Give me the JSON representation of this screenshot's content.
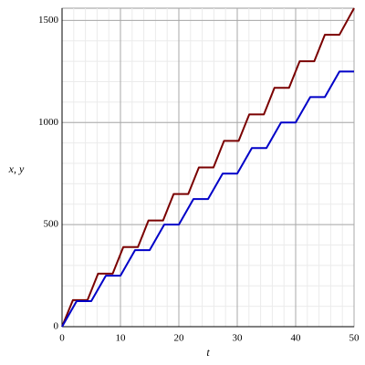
{
  "chart_data": {
    "type": "line",
    "x_label": "t",
    "y_label": "x, y",
    "xlim": [
      0,
      50
    ],
    "ylim": [
      0,
      1560
    ],
    "xticks": [
      0,
      10,
      20,
      30,
      40,
      50
    ],
    "yticks": [
      0,
      500,
      1000,
      1500
    ],
    "grid": true,
    "minor_grid": true,
    "series": [
      {
        "color": "#7a0000",
        "x": [
          0,
          1.86,
          4.36,
          6.17,
          8.67,
          10.49,
          12.99,
          14.8,
          17.3,
          19.11,
          21.61,
          23.43,
          25.93,
          27.74,
          30.24,
          32.06,
          34.56,
          36.37,
          38.87,
          40.69,
          43.19,
          45.0,
          47.5,
          50
        ],
        "values": [
          0,
          130,
          130,
          260,
          260,
          390,
          390,
          520,
          520,
          650,
          650,
          780,
          780,
          910,
          910,
          1040,
          1040,
          1170,
          1170,
          1300,
          1300,
          1430,
          1430,
          1560
        ]
      },
      {
        "color": "#0000c8",
        "x": [
          0,
          2.5,
          5,
          7.5,
          10,
          12.5,
          15,
          17.5,
          20,
          22.5,
          25,
          27.5,
          30,
          32.5,
          35,
          37.5,
          40,
          42.5,
          45,
          47.5,
          50
        ],
        "values": [
          0,
          125,
          125,
          250,
          250,
          375,
          375,
          500,
          500,
          625,
          625,
          750,
          750,
          875,
          875,
          1000,
          1000,
          1125,
          1125,
          1250,
          1250
        ]
      }
    ]
  }
}
